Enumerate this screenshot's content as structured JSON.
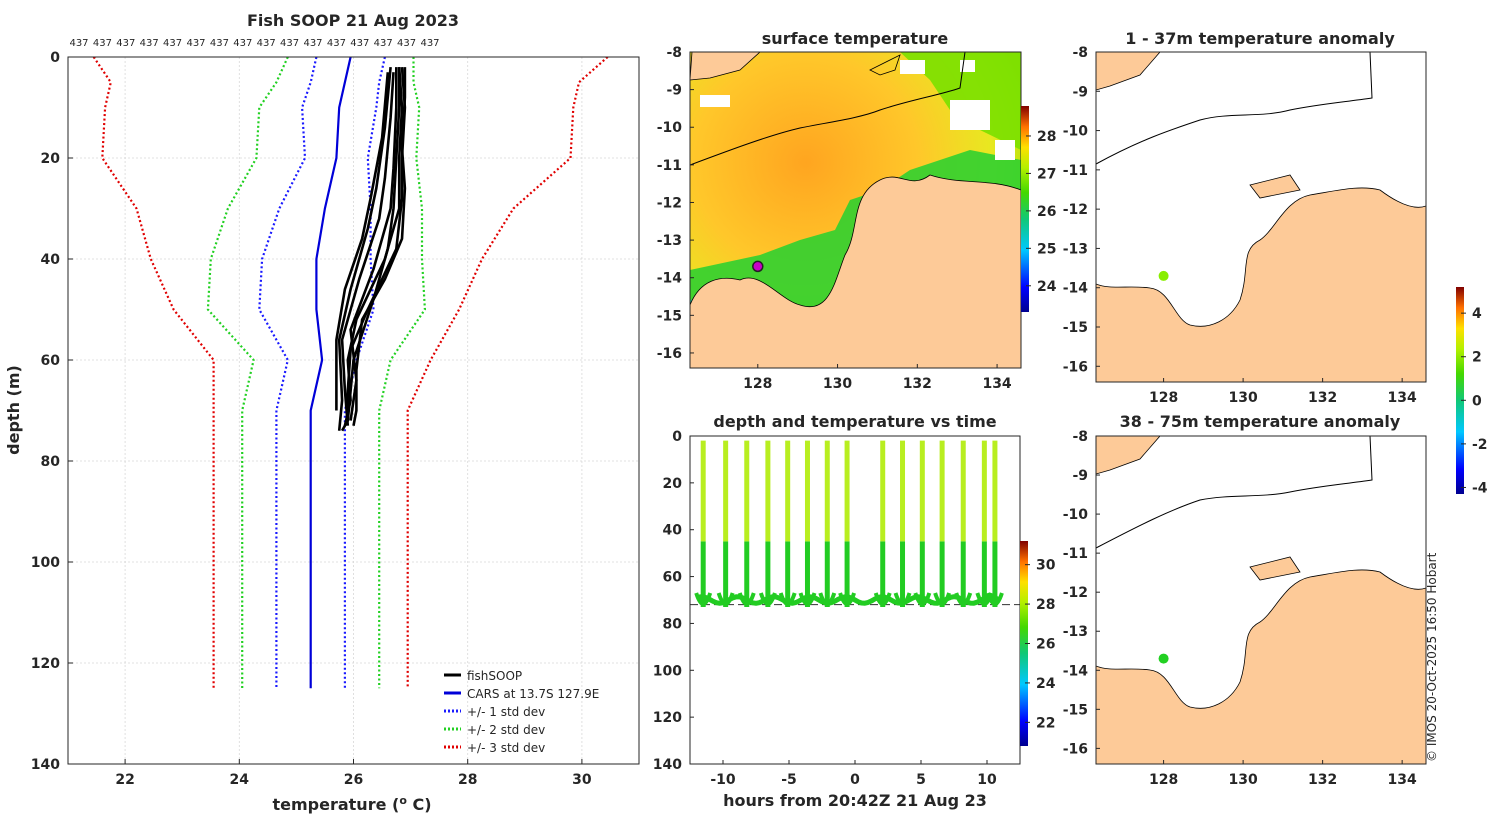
{
  "chart_data": [
    {
      "type": "line",
      "title": "Fish SOOP 21 Aug 2023",
      "count_labels": [
        "437",
        "437",
        "437",
        "437",
        "437",
        "437",
        "437",
        "437",
        "437",
        "437",
        "437",
        "437",
        "437",
        "437",
        "437",
        "437"
      ],
      "xlabel": "temperature (",
      "xlabel_sup": "o",
      "xlabel_end": " C)",
      "ylabel": "depth (m)",
      "xlim": [
        21,
        31
      ],
      "ylim": [
        0,
        140
      ],
      "xticks": [
        22,
        24,
        26,
        28,
        30
      ],
      "yticks": [
        0,
        20,
        40,
        60,
        80,
        100,
        120,
        140
      ],
      "depths": [
        0,
        5,
        10,
        20,
        30,
        40,
        50,
        60,
        70,
        80,
        100,
        125
      ],
      "cars": [
        25.95,
        25.85,
        25.75,
        25.7,
        25.5,
        25.35,
        25.35,
        25.45,
        25.25,
        25.25,
        25.25,
        25.25
      ],
      "std_offset_1": [
        0.6,
        0.6,
        0.65,
        0.55,
        0.8,
        0.95,
        1.0,
        0.6,
        0.6,
        0.6,
        0.6,
        0.6
      ],
      "std_offset_2": [
        1.1,
        1.2,
        1.4,
        1.4,
        1.7,
        1.85,
        1.9,
        1.2,
        1.2,
        1.2,
        1.2,
        1.2
      ],
      "std_offset_3": [
        4.5,
        4.1,
        4.1,
        4.1,
        3.3,
        2.9,
        2.5,
        1.9,
        1.7,
        1.7,
        1.7,
        1.7
      ],
      "fish_profiles": [
        {
          "depth": [
            2,
            10,
            20,
            28,
            38,
            50,
            58,
            66,
            72,
            74
          ],
          "temp": [
            26.85,
            26.9,
            26.85,
            26.85,
            26.75,
            26.25,
            25.95,
            25.9,
            25.9,
            25.8
          ]
        },
        {
          "depth": [
            2,
            10,
            20,
            30,
            40,
            52,
            60,
            68,
            73
          ],
          "temp": [
            26.8,
            26.85,
            26.8,
            26.8,
            26.55,
            26.05,
            25.9,
            25.95,
            25.85
          ]
        },
        {
          "depth": [
            2,
            10,
            22,
            30,
            42,
            54,
            64,
            72
          ],
          "temp": [
            26.75,
            26.75,
            26.7,
            26.65,
            26.35,
            25.95,
            26.05,
            25.95
          ]
        },
        {
          "depth": [
            3,
            12,
            24,
            32,
            44,
            56,
            66,
            73
          ],
          "temp": [
            26.7,
            26.65,
            26.55,
            26.45,
            26.1,
            25.8,
            25.85,
            25.9
          ]
        },
        {
          "depth": [
            2,
            14,
            26,
            34,
            46,
            56,
            68,
            74
          ],
          "temp": [
            26.65,
            26.55,
            26.4,
            26.25,
            25.95,
            25.75,
            25.8,
            25.75
          ]
        },
        {
          "depth": [
            3,
            16,
            28,
            36,
            46,
            56,
            70
          ],
          "temp": [
            26.6,
            26.5,
            26.3,
            26.15,
            25.85,
            25.7,
            25.7
          ]
        },
        {
          "depth": [
            2,
            8,
            18,
            26,
            36,
            44,
            52,
            62,
            70,
            73
          ],
          "temp": [
            26.9,
            26.9,
            26.85,
            26.9,
            26.85,
            26.55,
            26.15,
            26.05,
            26.05,
            26.0
          ]
        },
        {
          "depth": [
            2,
            10,
            20,
            30,
            38,
            48,
            60,
            72
          ],
          "temp": [
            26.8,
            26.8,
            26.75,
            26.7,
            26.6,
            26.35,
            26.0,
            25.9
          ]
        }
      ],
      "legend": [
        "fishSOOP",
        "CARS at 13.7S 127.9E",
        "+/- 1 std dev",
        "+/- 2 std dev",
        "+/- 3 std dev"
      ],
      "colors": {
        "fish": "#000000",
        "cars": "#0000d8",
        "std1": "#1a1aff",
        "std2": "#22d022",
        "std3": "#e00000"
      }
    },
    {
      "type": "heatmap",
      "title": "surface temperature",
      "xticks": [
        "128",
        "130",
        "132",
        "134"
      ],
      "yticks": [
        "-8",
        "-9",
        "-10",
        "-11",
        "-12",
        "-13",
        "-14",
        "-15",
        "-16"
      ],
      "xlim": [
        126.3,
        134.6
      ],
      "ylim": [
        -16.4,
        -8
      ],
      "colorbar_ticks": [
        "28",
        "27",
        "26",
        "25",
        "24"
      ],
      "colorbar_range": [
        23.3,
        28.8
      ],
      "marker_lon": 128.0,
      "marker_lat": -13.7
    },
    {
      "type": "heatmap",
      "title": "1 - 37m temperature anomaly",
      "xticks": [
        "128",
        "130",
        "132",
        "134"
      ],
      "yticks": [
        "-8",
        "-9",
        "-10",
        "-11",
        "-12",
        "-13",
        "-14",
        "-15",
        "-16"
      ],
      "marker_lon": 128.0,
      "marker_lat": -13.7
    },
    {
      "type": "heatmap",
      "title": "38 - 75m temperature anomaly",
      "xticks": [
        "128",
        "130",
        "132",
        "134"
      ],
      "yticks": [
        "-8",
        "-9",
        "-10",
        "-11",
        "-12",
        "-13",
        "-14",
        "-15",
        "-16"
      ],
      "marker_lon": 128.0,
      "marker_lat": -13.7,
      "colorbar_ticks": [
        "4",
        "2",
        "0",
        "-2",
        "-4"
      ],
      "colorbar_range": [
        -4.3,
        5.2
      ]
    },
    {
      "type": "scatter",
      "title": "depth and temperature vs time",
      "xlabel": "hours from 20:42Z 21 Aug 23",
      "xlim": [
        -12.5,
        12.5
      ],
      "ylim": [
        0,
        140
      ],
      "xticks": [
        -10,
        -5,
        0,
        5,
        10
      ],
      "yticks": [
        0,
        20,
        40,
        60,
        80,
        100,
        120,
        140
      ],
      "dive_times": [
        -11.5,
        -9.8,
        -8.2,
        -6.6,
        -5.1,
        -3.6,
        -2.1,
        -0.6,
        2.1,
        3.6,
        5.1,
        6.6,
        8.2,
        9.8,
        10.6
      ],
      "dive_bottom_depth": 73,
      "bottom_line_depth": 72,
      "colorbar_ticks": [
        "30",
        "28",
        "26",
        "24",
        "22"
      ],
      "colorbar_range": [
        20.8,
        31.2
      ]
    }
  ],
  "footer": {
    "credit": "© IMOS 20-Oct-2025 16:50 Hobart"
  }
}
